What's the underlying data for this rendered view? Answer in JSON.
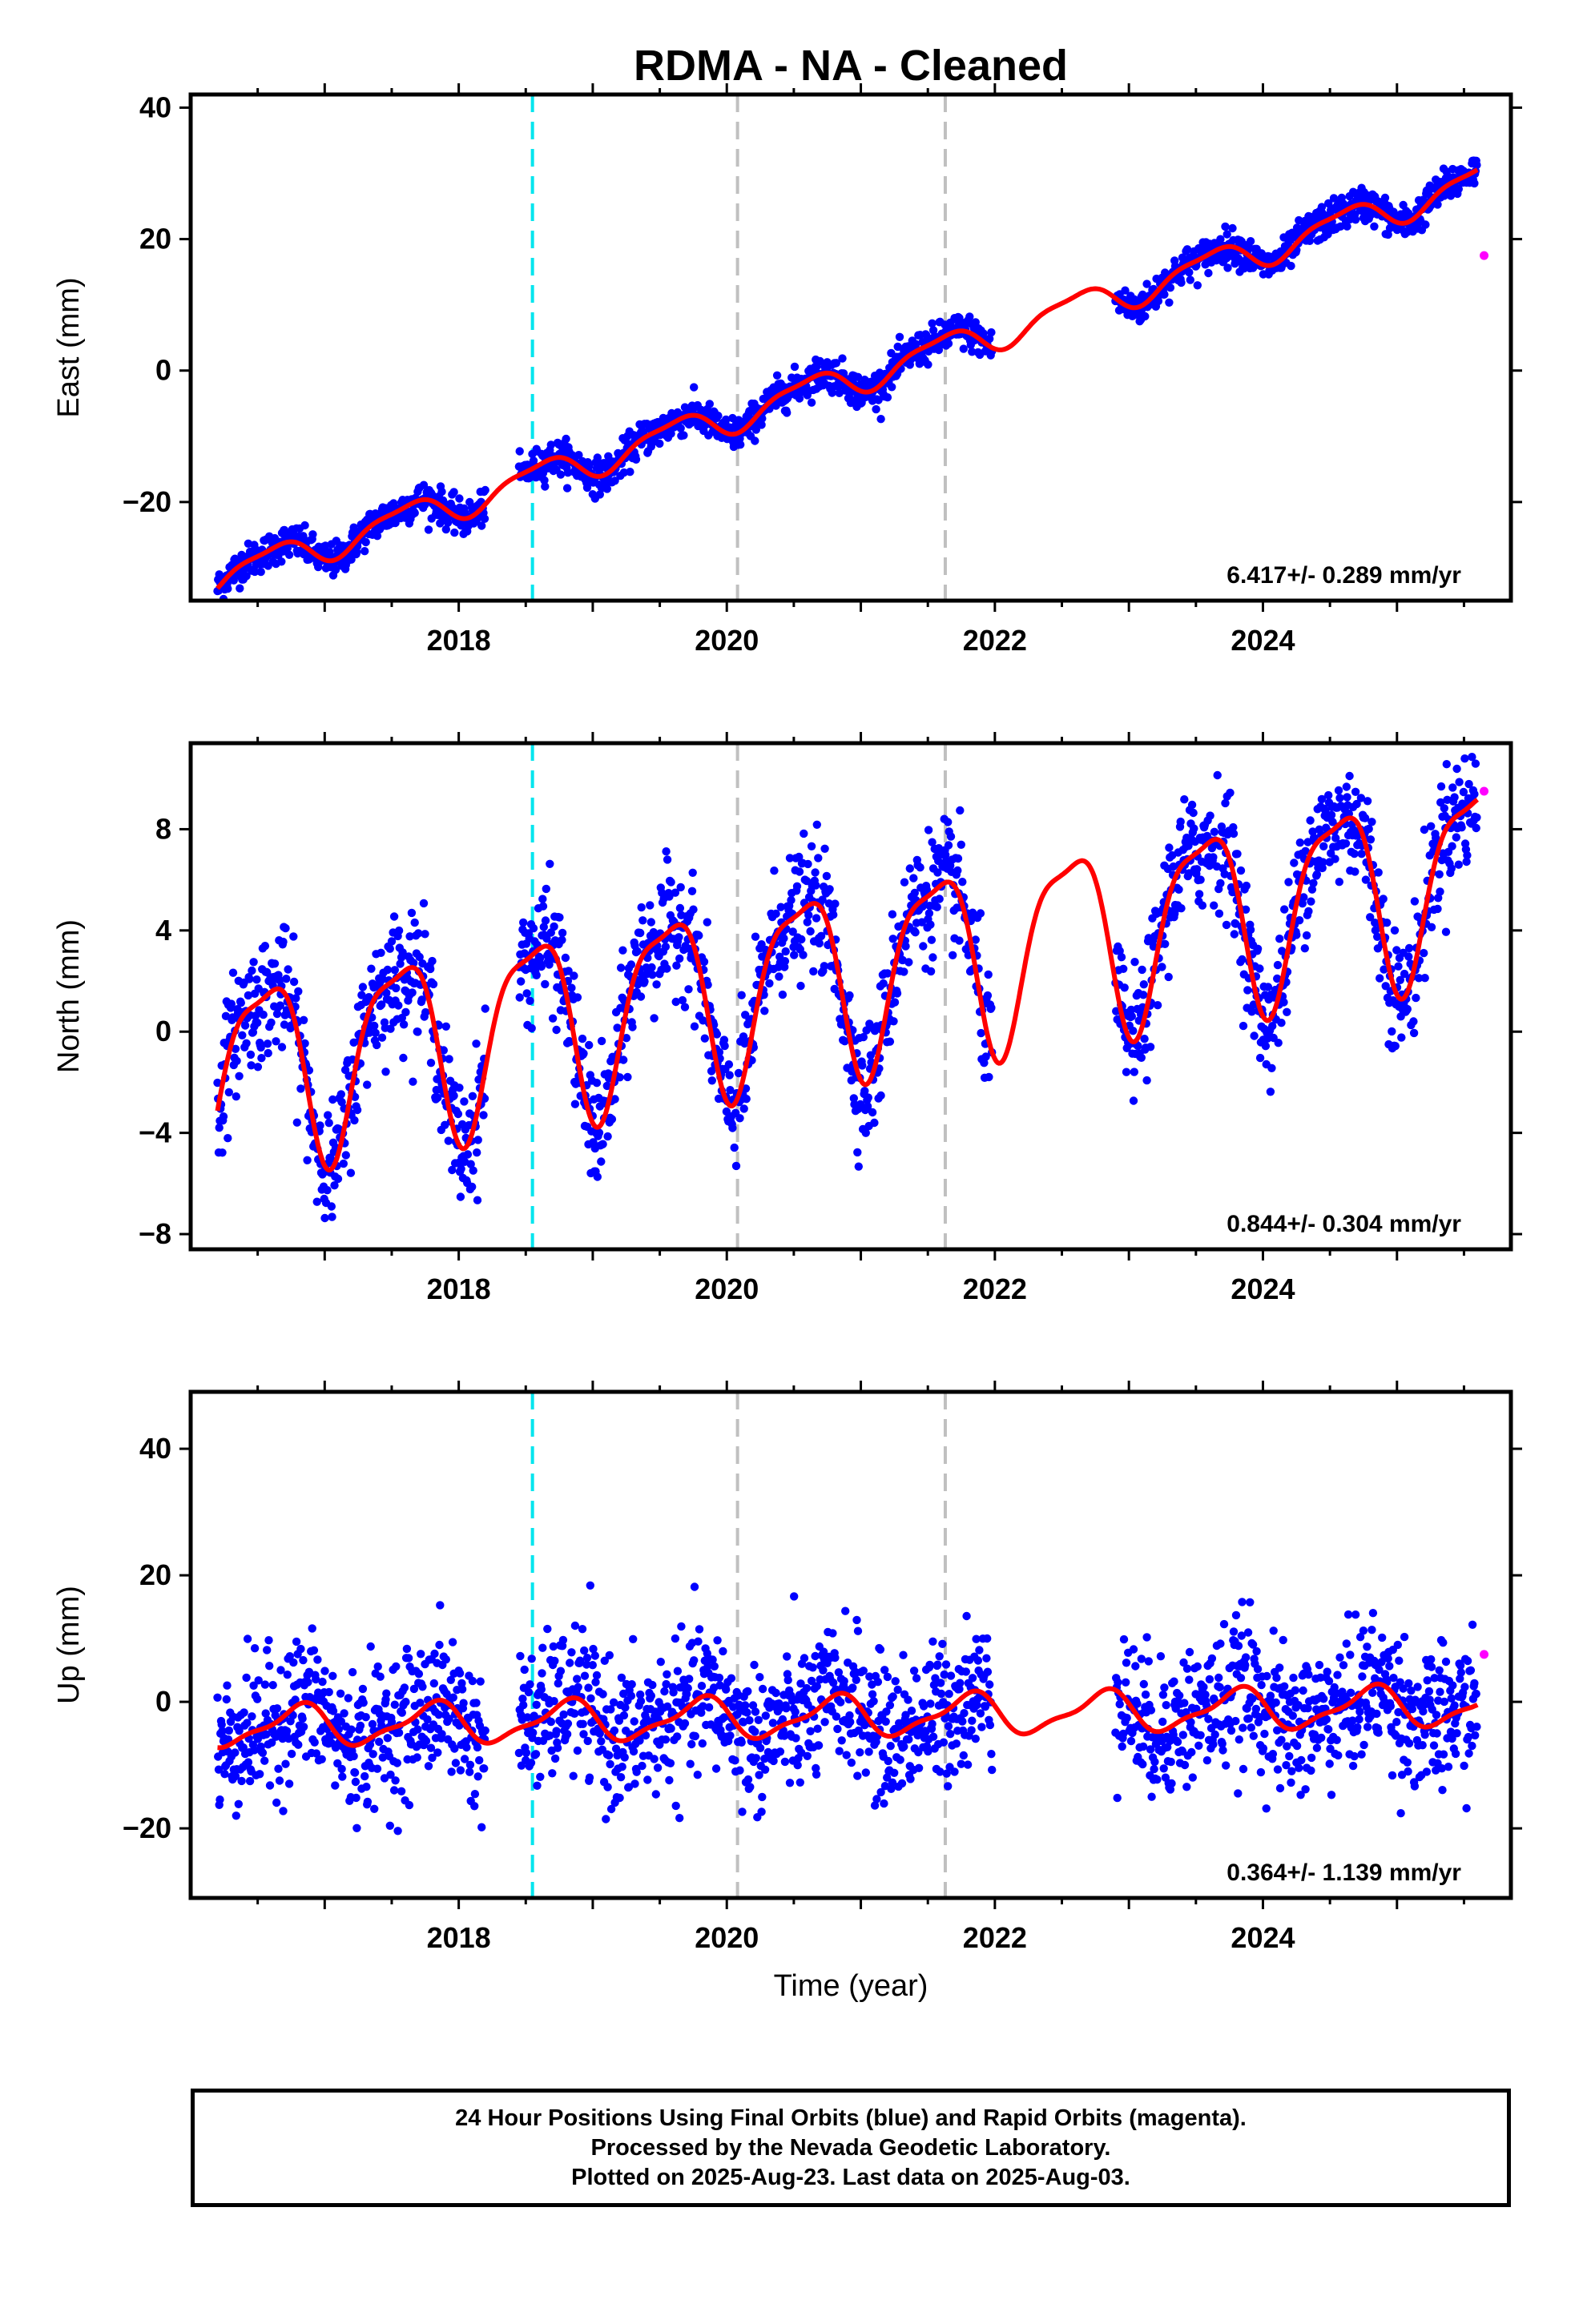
{
  "chart_data": [
    {
      "type": "scatter",
      "panel": "east",
      "title": "RDMA  - NA - Cleaned",
      "ylabel": "East (mm)",
      "xlabel": "",
      "xlim": [
        2016.0,
        2025.85
      ],
      "ylim": [
        -35,
        42
      ],
      "yticks": [
        -20,
        0,
        20,
        40
      ],
      "xticks": [
        2018,
        2020,
        2022,
        2024
      ],
      "rate_text": "6.417+/- 0.289 mm/yr",
      "vlines": [
        {
          "x": 2018.55,
          "color": "#00e5ee",
          "style": "dashed"
        },
        {
          "x": 2020.08,
          "color": "#c0c0c0",
          "style": "dashed"
        },
        {
          "x": 2021.63,
          "color": "#c0c0c0",
          "style": "dashed"
        }
      ],
      "model": {
        "trend": [
          2016.2,
          -31.5,
          6.417
        ],
        "amp_annual": 2.3,
        "phase": 0.35,
        "amp_semi": 0.7
      },
      "segments": [
        [
          2016.2,
          2018.2
        ],
        [
          2018.45,
          2021.98
        ],
        [
          2022.9,
          2025.6
        ]
      ],
      "scatter_sd": 1.3,
      "rapid_points": [
        {
          "x": 2025.65,
          "y": 17.5
        }
      ],
      "series": [
        {
          "name": "Final Orbits (blue)",
          "color": "#0000ff"
        },
        {
          "name": "Rapid Orbits (magenta)",
          "color": "#ff00ff"
        },
        {
          "name": "Model fit",
          "color": "#ff0000"
        }
      ]
    },
    {
      "type": "scatter",
      "panel": "north",
      "title": "",
      "ylabel": "North (mm)",
      "xlabel": "",
      "xlim": [
        2016.0,
        2025.85
      ],
      "ylim": [
        -8.6,
        11.4
      ],
      "yticks": [
        -8,
        -4,
        0,
        4,
        8
      ],
      "xticks": [
        2018,
        2020,
        2022,
        2024
      ],
      "rate_text": "0.844+/- 0.304 mm/yr",
      "vlines": [
        {
          "x": 2018.55,
          "color": "#00e5ee",
          "style": "dashed"
        },
        {
          "x": 2020.08,
          "color": "#c0c0c0",
          "style": "dashed"
        },
        {
          "x": 2021.63,
          "color": "#c0c0c0",
          "style": "dashed"
        }
      ],
      "model": {
        "trend": [
          2016.2,
          -1.6,
          0.844
        ],
        "amp_annual": 3.6,
        "phase": 0.3,
        "amp_semi": 1.0
      },
      "segments": [
        [
          2016.2,
          2018.2
        ],
        [
          2018.45,
          2021.98
        ],
        [
          2022.9,
          2025.6
        ]
      ],
      "scatter_sd": 1.2,
      "rapid_points": [
        {
          "x": 2025.65,
          "y": 9.5
        }
      ],
      "series": [
        {
          "name": "Final Orbits (blue)",
          "color": "#0000ff"
        },
        {
          "name": "Rapid Orbits (magenta)",
          "color": "#ff00ff"
        },
        {
          "name": "Model fit",
          "color": "#ff0000"
        }
      ]
    },
    {
      "type": "scatter",
      "panel": "up",
      "title": "",
      "ylabel": "Up (mm)",
      "xlabel": "Time (year)",
      "xlim": [
        2016.0,
        2025.85
      ],
      "ylim": [
        -31,
        49
      ],
      "yticks": [
        -20,
        0,
        20,
        40
      ],
      "xticks": [
        2018,
        2020,
        2022,
        2024
      ],
      "rate_text": "0.364+/- 1.139 mm/yr",
      "vlines": [
        {
          "x": 2018.55,
          "color": "#00e5ee",
          "style": "dashed"
        },
        {
          "x": 2020.08,
          "color": "#c0c0c0",
          "style": "dashed"
        },
        {
          "x": 2021.63,
          "color": "#c0c0c0",
          "style": "dashed"
        }
      ],
      "model": {
        "trend": [
          2016.2,
          -4.0,
          0.364
        ],
        "amp_annual": 3.0,
        "phase": 0.55,
        "amp_semi": 1.0
      },
      "segments": [
        [
          2016.2,
          2018.2
        ],
        [
          2018.45,
          2021.98
        ],
        [
          2022.9,
          2025.6
        ]
      ],
      "scatter_sd": 5.5,
      "rapid_points": [
        {
          "x": 2025.65,
          "y": 7.5
        }
      ],
      "series": [
        {
          "name": "Final Orbits (blue)",
          "color": "#0000ff"
        },
        {
          "name": "Rapid Orbits (magenta)",
          "color": "#ff00ff"
        },
        {
          "name": "Model fit",
          "color": "#ff0000"
        }
      ]
    }
  ],
  "footer": {
    "line1": "24 Hour Positions Using Final Orbits (blue) and Rapid Orbits (magenta).",
    "line2": "Processed by the Nevada Geodetic Laboratory.",
    "line3": "Plotted on 2025-Aug-23. Last data on 2025-Aug-03."
  }
}
